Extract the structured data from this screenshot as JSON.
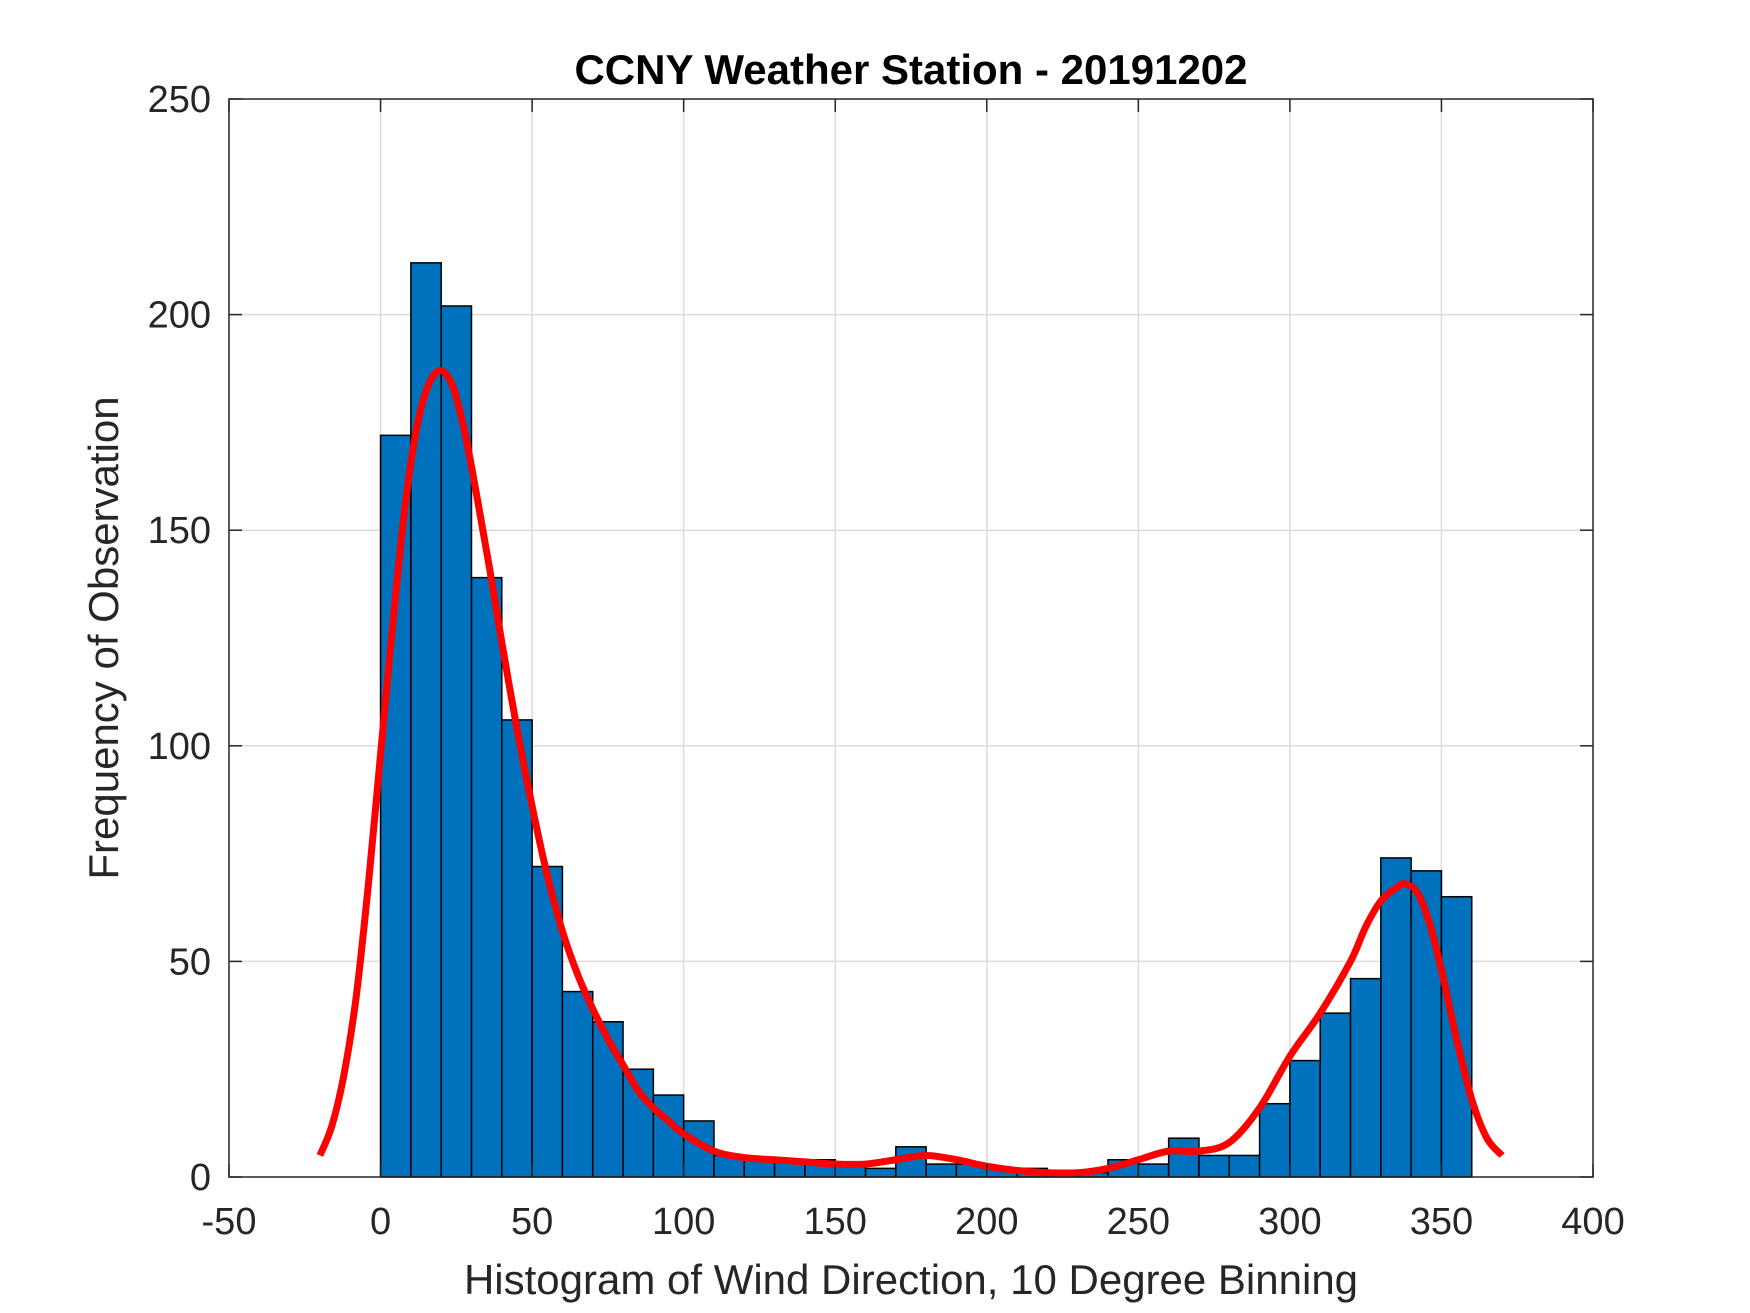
{
  "chart_data": {
    "type": "bar",
    "title": "CCNY Weather Station - 20191202",
    "xlabel": "Histogram of Wind Direction, 10 Degree Binning",
    "ylabel": "Frequency of Observation",
    "xlim": [
      -50,
      400
    ],
    "ylim": [
      0,
      250
    ],
    "xticks": [
      -50,
      0,
      50,
      100,
      150,
      200,
      250,
      300,
      350,
      400
    ],
    "yticks": [
      0,
      50,
      100,
      150,
      200,
      250
    ],
    "grid": true,
    "bin_width": 10,
    "bin_edges": [
      0,
      10,
      20,
      30,
      40,
      50,
      60,
      70,
      80,
      90,
      100,
      110,
      120,
      130,
      140,
      150,
      160,
      170,
      180,
      190,
      200,
      210,
      220,
      230,
      240,
      250,
      260,
      270,
      280,
      290,
      300,
      310,
      320,
      330,
      340,
      350,
      360
    ],
    "values": [
      172,
      212,
      202,
      139,
      106,
      72,
      43,
      36,
      25,
      19,
      13,
      5,
      4,
      4,
      4,
      3,
      2,
      7,
      3,
      3,
      2,
      2,
      1,
      1,
      4,
      3,
      9,
      5,
      5,
      17,
      27,
      38,
      46,
      74,
      71,
      65
    ],
    "bar_color": "#0072BD",
    "bar_edge_color": "#000000",
    "curve": {
      "color": "#FF0000",
      "x": [
        -20,
        -16,
        -12,
        -8,
        -4,
        0,
        4,
        8,
        12,
        16,
        20,
        24,
        28,
        32,
        36,
        40,
        45,
        50,
        55,
        60,
        65,
        70,
        75,
        80,
        85,
        90,
        95,
        100,
        110,
        120,
        130,
        140,
        150,
        160,
        170,
        180,
        190,
        200,
        210,
        220,
        230,
        240,
        250,
        260,
        270,
        280,
        290,
        300,
        310,
        320,
        325,
        330,
        335,
        338,
        342,
        346,
        350,
        355,
        360,
        365,
        370
      ],
      "y": [
        5,
        12,
        24,
        42,
        68,
        98,
        128,
        155,
        174,
        184,
        187,
        183,
        172,
        157,
        141,
        124,
        104,
        86,
        70,
        57,
        47,
        39,
        32,
        26,
        20,
        16,
        13,
        10,
        6,
        4.5,
        4,
        3.5,
        3,
        3,
        4,
        5,
        4,
        2.5,
        1.5,
        1,
        1,
        2,
        4,
        6,
        6,
        8,
        16,
        28,
        38,
        50,
        58,
        64,
        67,
        68,
        66,
        59,
        48,
        32,
        18,
        9,
        5
      ]
    }
  }
}
